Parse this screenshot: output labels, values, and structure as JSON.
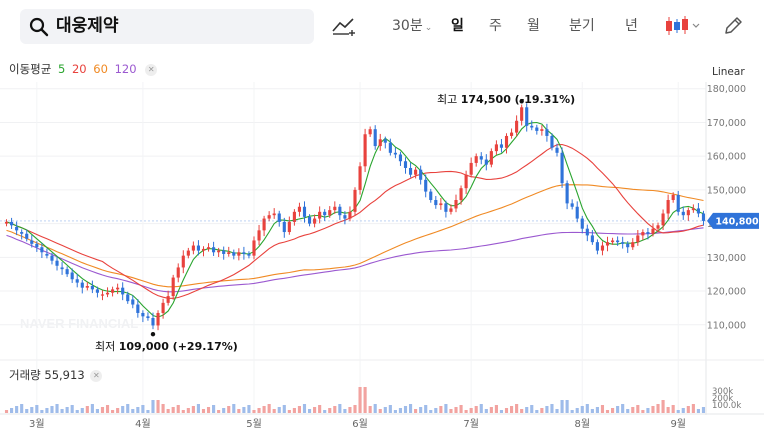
{
  "search": {
    "stock_name": "대웅제약"
  },
  "toolbar": {
    "periods": [
      {
        "label": "30분",
        "dropdown": true
      },
      {
        "label": "일",
        "active": true
      },
      {
        "label": "주"
      },
      {
        "label": "월"
      },
      {
        "label": "분기"
      },
      {
        "label": "년"
      }
    ]
  },
  "indicators": {
    "label": "이동평균",
    "ma": [
      {
        "label": "5",
        "color": "#2aa52f"
      },
      {
        "label": "20",
        "color": "#e8423d"
      },
      {
        "label": "60",
        "color": "#f08a24"
      },
      {
        "label": "120",
        "color": "#9b59d0"
      }
    ]
  },
  "scale_toggle": "Linear",
  "price_axis": [
    "180,000",
    "170,000",
    "160,000",
    "150,000",
    "140,000",
    "130,000",
    "120,000",
    "110,000"
  ],
  "current_price_label": "140,800",
  "annotations": {
    "high": {
      "label": "최고",
      "value": "174,500 (-19.31%)"
    },
    "low": {
      "label": "최저",
      "value": "109,000 (+29.17%)"
    }
  },
  "volume": {
    "label": "거래량 55,913",
    "axis_ticks": [
      "300k",
      "200k",
      "100.0k"
    ]
  },
  "watermark": "NAVER FINANCIAL",
  "x_axis": [
    "3월",
    "4월",
    "5월",
    "6월",
    "7월",
    "8월",
    "9월"
  ],
  "chart_data": {
    "type": "candlestick",
    "y_range": [
      104000,
      182000
    ],
    "up_color": "#e8423d",
    "down_color": "#2f73d9",
    "series_close": [
      140500,
      139500,
      138000,
      137000,
      135500,
      134000,
      133000,
      131500,
      130500,
      129000,
      127500,
      126500,
      125000,
      123500,
      122500,
      121000,
      121500,
      120500,
      119500,
      119000,
      119500,
      120500,
      121000,
      119000,
      117000,
      116000,
      113500,
      112500,
      112000,
      109800,
      113500,
      116500,
      118500,
      124000,
      127000,
      130500,
      132000,
      133500,
      132000,
      132500,
      133000,
      131500,
      132000,
      131000,
      131500,
      130500,
      131500,
      131000,
      130500,
      135000,
      138000,
      141500,
      142500,
      143000,
      140500,
      137500,
      140500,
      143500,
      145000,
      142000,
      140000,
      141500,
      143500,
      142500,
      144000,
      145000,
      142500,
      141500,
      143500,
      150000,
      157000,
      166500,
      168000,
      163000,
      165000,
      164000,
      161000,
      160500,
      158500,
      156500,
      154500,
      156000,
      153000,
      149500,
      147000,
      145500,
      146000,
      143500,
      144500,
      147000,
      150500,
      154500,
      158000,
      160000,
      159000,
      157500,
      161500,
      163500,
      162500,
      166000,
      167000,
      170500,
      174500,
      169000,
      168500,
      167500,
      168000,
      166000,
      162500,
      161000,
      152000,
      146000,
      145000,
      141500,
      138500,
      136500,
      134500,
      132000,
      133500,
      134500,
      135000,
      134500,
      134000,
      133000,
      134500,
      136500,
      137500,
      137000,
      138500,
      139500,
      143000,
      147000,
      148500,
      143500,
      142500,
      144000,
      144500,
      143000,
      140800
    ],
    "series_open": [
      140000,
      140500,
      139000,
      137500,
      137000,
      135000,
      134000,
      133000,
      131000,
      130500,
      129000,
      127000,
      126500,
      125500,
      123500,
      122500,
      121000,
      121500,
      120500,
      119000,
      119000,
      119500,
      120500,
      121000,
      119000,
      117500,
      116000,
      113500,
      112500,
      112000,
      109800,
      113500,
      116500,
      118500,
      124000,
      127000,
      130500,
      132000,
      133500,
      132000,
      132500,
      133000,
      131500,
      132000,
      131000,
      131500,
      130500,
      131500,
      131000,
      130500,
      135000,
      138000,
      141500,
      142500,
      143000,
      140500,
      137500,
      140500,
      143500,
      145000,
      142000,
      140000,
      141500,
      143500,
      142500,
      144000,
      145000,
      142500,
      141500,
      143500,
      150000,
      157000,
      166500,
      168000,
      163000,
      165000,
      164000,
      161000,
      160500,
      158500,
      156500,
      154500,
      156000,
      153000,
      149500,
      147000,
      145500,
      146000,
      143500,
      144500,
      147000,
      150500,
      154500,
      158000,
      160000,
      159000,
      157500,
      161500,
      163500,
      162500,
      166000,
      167000,
      170500,
      174500,
      169000,
      168500,
      167500,
      168000,
      166000,
      162500,
      161000,
      152000,
      146000,
      145000,
      141500,
      138500,
      136500,
      134500,
      132000,
      133500,
      134500,
      135000,
      134500,
      134000,
      133000,
      134500,
      136500,
      137500,
      137000,
      138500,
      139500,
      143000,
      147000,
      148500,
      143500,
      142500,
      144000,
      144500,
      143000
    ],
    "high": 174500,
    "low": 109000,
    "last": 140800
  }
}
